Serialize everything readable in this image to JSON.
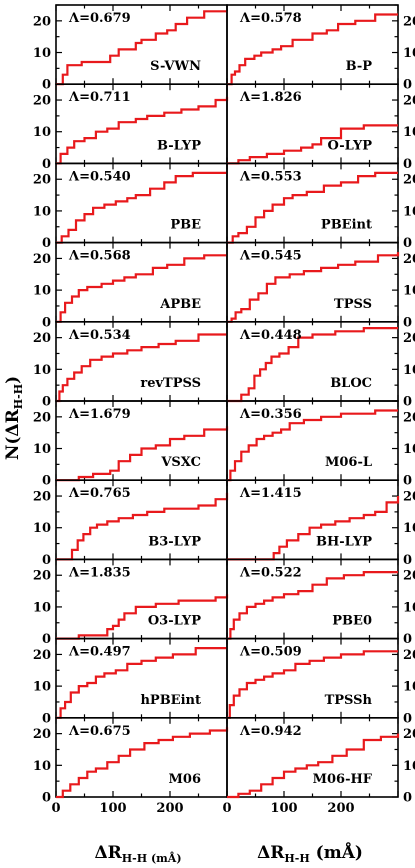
{
  "chart_data": {
    "type": "line",
    "description_ylabel": "N(ΔR",
    "ylabel_main": "N(ΔR",
    "ylabel_sub": "H-H",
    "ylabel_close": ")",
    "xlabel_left_main": "ΔR",
    "xlabel_left_sub": "H-H (mÅ)",
    "xlabel_right_main": "ΔR",
    "xlabel_right_sub": "H-H",
    "xlabel_right_unit": " (mÅ)",
    "xlim": [
      0,
      300
    ],
    "ylim": [
      0,
      25
    ],
    "xticks": [
      0,
      100,
      200
    ],
    "yticks": [
      0,
      10,
      20
    ],
    "panels": [
      {
        "name": "S-VWN",
        "lambda": "Λ=0.679",
        "x": [
          0,
          12,
          20,
          33,
          45,
          75,
          95,
          110,
          140,
          150,
          175,
          195,
          210,
          230,
          260,
          300
        ],
        "y": [
          0,
          3,
          6,
          6,
          7,
          7,
          9,
          11,
          13,
          14,
          16,
          17,
          19,
          21,
          23,
          23
        ]
      },
      {
        "name": "B-P",
        "lambda": "Λ=0.578",
        "x": [
          0,
          8,
          14,
          22,
          32,
          48,
          60,
          80,
          95,
          115,
          150,
          175,
          195,
          225,
          260,
          300
        ],
        "y": [
          0,
          3,
          4,
          6,
          8,
          9,
          10,
          11,
          12,
          14,
          16,
          17,
          19,
          20,
          22,
          22
        ]
      },
      {
        "name": "B-LYP",
        "lambda": "Λ=0.711",
        "x": [
          0,
          8,
          20,
          32,
          50,
          70,
          90,
          110,
          140,
          160,
          190,
          220,
          250,
          280,
          300
        ],
        "y": [
          0,
          3,
          5,
          7,
          8,
          10,
          11,
          13,
          14,
          15,
          16,
          17,
          18,
          20,
          21
        ]
      },
      {
        "name": "O-LYP",
        "lambda": "Λ=1.826",
        "x": [
          0,
          20,
          40,
          70,
          100,
          130,
          150,
          165,
          200,
          240,
          300
        ],
        "y": [
          0,
          1,
          2,
          3,
          4,
          5,
          6,
          8,
          11,
          12,
          12
        ]
      },
      {
        "name": "PBE",
        "lambda": "Λ=0.540",
        "x": [
          0,
          10,
          22,
          35,
          50,
          65,
          85,
          105,
          125,
          140,
          165,
          190,
          210,
          240,
          300
        ],
        "y": [
          0,
          2,
          4,
          7,
          9,
          11,
          12,
          13,
          14,
          15,
          17,
          19,
          21,
          22,
          22
        ]
      },
      {
        "name": "PBEint",
        "lambda": "Λ=0.553",
        "x": [
          0,
          10,
          20,
          35,
          50,
          65,
          80,
          100,
          115,
          140,
          170,
          200,
          230,
          260,
          300
        ],
        "y": [
          0,
          2,
          3,
          5,
          8,
          10,
          12,
          14,
          15,
          16,
          18,
          19,
          21,
          22,
          22
        ]
      },
      {
        "name": "APBE",
        "lambda": "Λ=0.568",
        "x": [
          0,
          8,
          16,
          28,
          40,
          55,
          80,
          100,
          120,
          140,
          170,
          195,
          225,
          260,
          300
        ],
        "y": [
          0,
          3,
          6,
          8,
          10,
          11,
          12,
          13,
          14,
          15,
          17,
          18,
          20,
          21,
          21
        ]
      },
      {
        "name": "TPSS",
        "lambda": "Λ=0.545",
        "x": [
          0,
          8,
          15,
          25,
          40,
          55,
          70,
          85,
          110,
          135,
          165,
          195,
          225,
          265,
          300
        ],
        "y": [
          0,
          1,
          3,
          4,
          7,
          9,
          12,
          14,
          15,
          16,
          17,
          18,
          19,
          21,
          22
        ]
      },
      {
        "name": "revTPSS",
        "lambda": "Λ=0.534",
        "x": [
          0,
          6,
          12,
          20,
          32,
          45,
          60,
          80,
          100,
          125,
          150,
          180,
          210,
          250,
          300
        ],
        "y": [
          0,
          3,
          5,
          7,
          9,
          11,
          13,
          14,
          15,
          16,
          17,
          18,
          19,
          21,
          21
        ]
      },
      {
        "name": "BLOC",
        "lambda": "Λ=0.448",
        "x": [
          0,
          25,
          38,
          48,
          58,
          68,
          78,
          92,
          108,
          125,
          150,
          190,
          240,
          300
        ],
        "y": [
          0,
          2,
          4,
          8,
          10,
          12,
          14,
          15,
          17,
          20,
          21,
          22,
          23,
          23
        ]
      },
      {
        "name": "VSXC",
        "lambda": "Λ=1.679",
        "x": [
          0,
          40,
          65,
          95,
          110,
          130,
          150,
          175,
          200,
          225,
          260,
          300
        ],
        "y": [
          0,
          1,
          2,
          3,
          6,
          8,
          10,
          11,
          13,
          14,
          16,
          17
        ]
      },
      {
        "name": "M06-L",
        "lambda": "Λ=0.356",
        "x": [
          0,
          6,
          14,
          25,
          38,
          52,
          65,
          80,
          95,
          110,
          135,
          165,
          200,
          260,
          300
        ],
        "y": [
          0,
          3,
          6,
          9,
          11,
          13,
          14,
          15,
          16,
          18,
          19,
          20,
          21,
          22,
          22
        ]
      },
      {
        "name": "B3-LYP",
        "lambda": "Λ=0.765",
        "x": [
          0,
          28,
          38,
          48,
          60,
          72,
          90,
          110,
          135,
          160,
          190,
          220,
          250,
          280,
          300
        ],
        "y": [
          0,
          3,
          6,
          8,
          10,
          11,
          12,
          13,
          14,
          15,
          16,
          16,
          17,
          19,
          21
        ]
      },
      {
        "name": "BH-LYP",
        "lambda": "Λ=1.415",
        "x": [
          0,
          82,
          92,
          105,
          125,
          145,
          165,
          190,
          215,
          240,
          260,
          280,
          300
        ],
        "y": [
          0,
          2,
          4,
          6,
          8,
          10,
          11,
          12,
          13,
          14,
          15,
          18,
          20
        ]
      },
      {
        "name": "O3-LYP",
        "lambda": "Λ=1.835",
        "x": [
          0,
          40,
          70,
          90,
          100,
          110,
          120,
          140,
          175,
          215,
          250,
          280,
          300
        ],
        "y": [
          0,
          1,
          1,
          3,
          4,
          6,
          8,
          10,
          11,
          12,
          12,
          13,
          14
        ]
      },
      {
        "name": "PBE0",
        "lambda": "Λ=0.522",
        "x": [
          0,
          6,
          12,
          22,
          35,
          50,
          65,
          80,
          100,
          125,
          150,
          175,
          205,
          240,
          300
        ],
        "y": [
          0,
          3,
          6,
          8,
          10,
          11,
          12,
          13,
          14,
          15,
          17,
          19,
          20,
          21,
          21
        ]
      },
      {
        "name": "hPBEint",
        "lambda": "Λ=0.497",
        "x": [
          0,
          8,
          16,
          26,
          40,
          55,
          70,
          85,
          105,
          125,
          150,
          175,
          205,
          245,
          300
        ],
        "y": [
          0,
          3,
          5,
          8,
          10,
          11,
          13,
          14,
          15,
          17,
          18,
          19,
          20,
          22,
          22
        ]
      },
      {
        "name": "TPSSh",
        "lambda": "Λ=0.509",
        "x": [
          0,
          5,
          12,
          22,
          35,
          50,
          65,
          80,
          100,
          120,
          145,
          170,
          200,
          240,
          300
        ],
        "y": [
          0,
          4,
          7,
          9,
          11,
          12,
          13,
          14,
          15,
          17,
          18,
          19,
          20,
          21,
          21
        ]
      },
      {
        "name": "M06",
        "lambda": "Λ=0.675",
        "x": [
          0,
          12,
          25,
          40,
          55,
          70,
          90,
          110,
          130,
          155,
          180,
          205,
          235,
          270,
          300
        ],
        "y": [
          0,
          2,
          4,
          6,
          8,
          9,
          11,
          13,
          15,
          17,
          18,
          19,
          20,
          21,
          22
        ]
      },
      {
        "name": "M06-HF",
        "lambda": "Λ=0.942",
        "x": [
          0,
          20,
          40,
          60,
          80,
          100,
          120,
          140,
          160,
          185,
          210,
          240,
          270,
          300
        ],
        "y": [
          0,
          1,
          2,
          4,
          6,
          8,
          9,
          10,
          11,
          13,
          15,
          18,
          19,
          20
        ]
      }
    ]
  }
}
